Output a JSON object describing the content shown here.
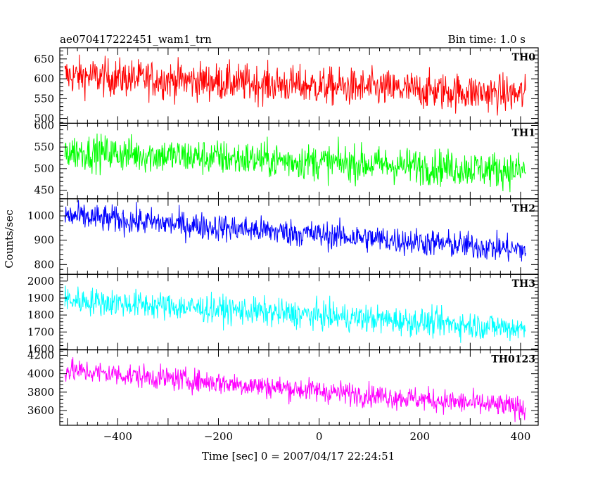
{
  "header": {
    "left_title": "ae070417222451_wam1_trn",
    "right_title": "Bin time: 1.0 s"
  },
  "axes": {
    "ylabel": "Counts/sec",
    "xlabel": "Time [sec] 0 = 2007/04/17 22:24:51",
    "xlim": [
      -515,
      435
    ],
    "x_ticks": [
      "-400",
      "-200",
      "0",
      "200",
      "400"
    ]
  },
  "chart_data": [
    {
      "type": "line",
      "name": "TH0",
      "color": "#ff0000",
      "x_range": [
        -505,
        410
      ],
      "trend_start": 608,
      "trend_end": 560,
      "noise_amplitude": 32,
      "ylim": [
        488,
        678
      ],
      "y_ticks": [
        "650",
        "600",
        "550",
        "500"
      ],
      "y_tick_values": [
        650,
        600,
        550,
        500
      ]
    },
    {
      "type": "line",
      "name": "TH1",
      "color": "#00ff00",
      "x_range": [
        -505,
        410
      ],
      "trend_start": 540,
      "trend_end": 495,
      "noise_amplitude": 28,
      "ylim": [
        430,
        605
      ],
      "y_ticks": [
        "600",
        "550",
        "500",
        "450"
      ],
      "y_tick_values": [
        600,
        550,
        500,
        450
      ]
    },
    {
      "type": "line",
      "name": "TH2",
      "color": "#0000ff",
      "x_range": [
        -505,
        410
      ],
      "trend_start": 1000,
      "trend_end": 860,
      "noise_amplitude": 38,
      "ylim": [
        760,
        1070
      ],
      "y_ticks": [
        "1000",
        "900",
        "800"
      ],
      "y_tick_values": [
        1000,
        900,
        800
      ]
    },
    {
      "type": "line",
      "name": "TH3",
      "color": "#00ffff",
      "x_range": [
        -505,
        410
      ],
      "trend_start": 1890,
      "trend_end": 1720,
      "noise_amplitude": 55,
      "ylim": [
        1595,
        2040
      ],
      "y_ticks": [
        "2000",
        "1900",
        "1800",
        "1700",
        "1600"
      ],
      "y_tick_values": [
        2000,
        1900,
        1800,
        1700,
        1600
      ]
    },
    {
      "type": "line",
      "name": "TH0123",
      "color": "#ff00ff",
      "x_range": [
        -505,
        410
      ],
      "trend_start": 4040,
      "trend_end": 3630,
      "noise_amplitude": 85,
      "ylim": [
        3440,
        4260
      ],
      "y_ticks": [
        "4200",
        "4000",
        "3800",
        "3600"
      ],
      "y_tick_values": [
        4200,
        4000,
        3800,
        3600
      ]
    }
  ]
}
